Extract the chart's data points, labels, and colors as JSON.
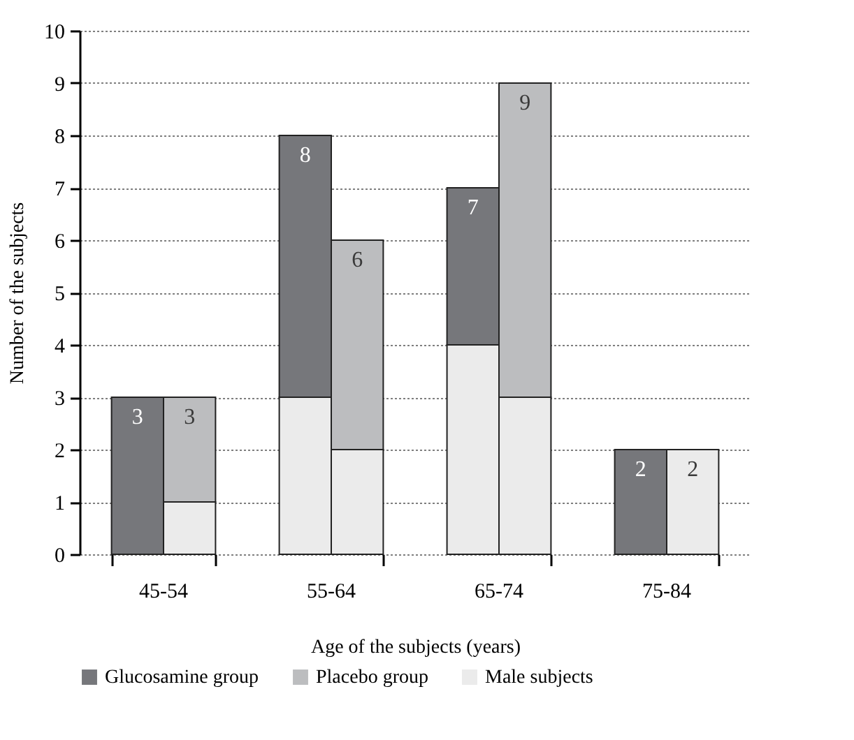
{
  "chart_data": {
    "type": "bar",
    "stacked": true,
    "xlabel": "Age of the subjects (years)",
    "ylabel": "Number of the subjects",
    "categories": [
      null,
      null,
      null,
      null,
      null,
      null,
      null,
      null
    ],
    "annotations": [
      "45-54",
      "55-64",
      "65-74",
      "75-84"
    ],
    "series": [
      {
        "name": "Male subjects",
        "color": "#ebebeb",
        "values": [
          null,
          1,
          3,
          2,
          4,
          3,
          null,
          2
        ]
      },
      {
        "name": "Glucosamine group",
        "color": "#76777b",
        "values": [
          3,
          null,
          5,
          null,
          3,
          null,
          2,
          null
        ]
      },
      {
        "name": "Placebo group",
        "color": "#bcbdbf",
        "values": [
          null,
          2,
          null,
          4,
          null,
          6,
          null,
          null
        ]
      }
    ],
    "totals": [
      "3",
      "3",
      "8",
      "6",
      "7",
      "9",
      "2",
      "2"
    ],
    "ylim": [
      0,
      10
    ],
    "yticks": [
      0,
      1,
      2,
      3,
      4,
      5,
      6,
      7,
      8,
      9,
      10
    ],
    "grid": "y",
    "legend": "bottom"
  }
}
